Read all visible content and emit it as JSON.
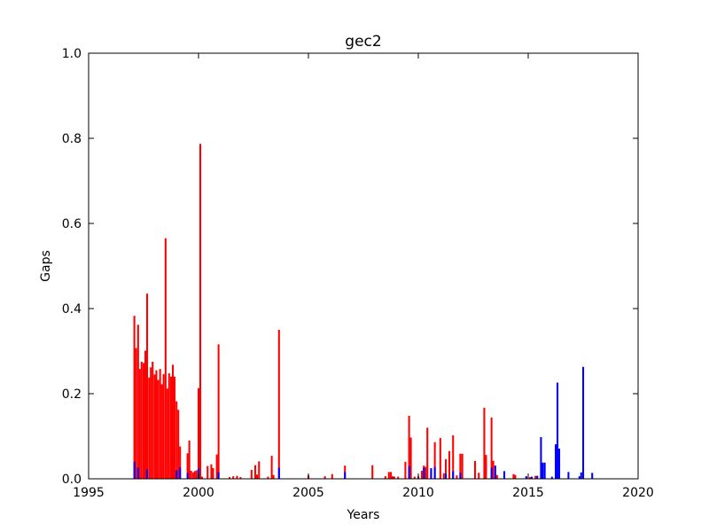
{
  "chart_data": {
    "type": "bar",
    "title": "gec2",
    "xlabel": "Years",
    "ylabel": "Gaps",
    "xlim": [
      1995,
      2020
    ],
    "ylim": [
      0,
      1.0
    ],
    "xticks": [
      "1995",
      "2000",
      "2005",
      "2010",
      "2015",
      "2020"
    ],
    "yticks": [
      "0.0",
      "0.2",
      "0.4",
      "0.6",
      "0.8",
      "1.0"
    ],
    "grid": false,
    "legend": "none",
    "bar_width_years": 0.083,
    "series": [
      {
        "color": "#ff0000",
        "points": [
          [
            1997.04,
            0.383
          ],
          [
            1997.12,
            0.307
          ],
          [
            1997.21,
            0.362
          ],
          [
            1997.29,
            0.258
          ],
          [
            1997.37,
            0.275
          ],
          [
            1997.46,
            0.272
          ],
          [
            1997.54,
            0.301
          ],
          [
            1997.62,
            0.435
          ],
          [
            1997.71,
            0.238
          ],
          [
            1997.79,
            0.262
          ],
          [
            1997.87,
            0.275
          ],
          [
            1997.96,
            0.245
          ],
          [
            1998.04,
            0.255
          ],
          [
            1998.12,
            0.232
          ],
          [
            1998.21,
            0.258
          ],
          [
            1998.29,
            0.222
          ],
          [
            1998.37,
            0.246
          ],
          [
            1998.46,
            0.565
          ],
          [
            1998.54,
            0.212
          ],
          [
            1998.62,
            0.248
          ],
          [
            1998.71,
            0.24
          ],
          [
            1998.79,
            0.268
          ],
          [
            1998.87,
            0.24
          ],
          [
            1998.96,
            0.182
          ],
          [
            1999.04,
            0.162
          ],
          [
            1999.12,
            0.076
          ],
          [
            1999.46,
            0.06
          ],
          [
            1999.54,
            0.09
          ],
          [
            1999.62,
            0.019
          ],
          [
            1999.71,
            0.015
          ],
          [
            1999.79,
            0.018
          ],
          [
            1999.87,
            0.02
          ],
          [
            1999.96,
            0.213
          ],
          [
            2000.04,
            0.787
          ],
          [
            2000.12,
            0.005
          ],
          [
            2000.37,
            0.03
          ],
          [
            2000.54,
            0.034
          ],
          [
            2000.62,
            0.025
          ],
          [
            2000.79,
            0.057
          ],
          [
            2000.87,
            0.316
          ],
          [
            2001.37,
            0.004
          ],
          [
            2001.54,
            0.006
          ],
          [
            2001.71,
            0.007
          ],
          [
            2001.87,
            0.004
          ],
          [
            2002.37,
            0.021
          ],
          [
            2002.54,
            0.032
          ],
          [
            2002.62,
            0.01
          ],
          [
            2002.71,
            0.041
          ],
          [
            2003.12,
            0.005
          ],
          [
            2003.29,
            0.054
          ],
          [
            2003.37,
            0.009
          ],
          [
            2003.62,
            0.35
          ],
          [
            2004.96,
            0.008
          ],
          [
            2005.71,
            0.006
          ],
          [
            2006.04,
            0.011
          ],
          [
            2006.62,
            0.031
          ],
          [
            2007.87,
            0.032
          ],
          [
            2008.46,
            0.006
          ],
          [
            2008.62,
            0.016
          ],
          [
            2008.71,
            0.016
          ],
          [
            2008.79,
            0.006
          ],
          [
            2008.87,
            0.005
          ],
          [
            2009.04,
            0.005
          ],
          [
            2009.37,
            0.04
          ],
          [
            2009.54,
            0.148
          ],
          [
            2009.62,
            0.097
          ],
          [
            2009.79,
            0.005
          ],
          [
            2009.96,
            0.006
          ],
          [
            2010.12,
            0.019
          ],
          [
            2010.21,
            0.031
          ],
          [
            2010.29,
            0.028
          ],
          [
            2010.37,
            0.12
          ],
          [
            2010.54,
            0.019
          ],
          [
            2010.71,
            0.086
          ],
          [
            2010.96,
            0.096
          ],
          [
            2011.12,
            0.013
          ],
          [
            2011.21,
            0.046
          ],
          [
            2011.37,
            0.065
          ],
          [
            2011.54,
            0.102
          ],
          [
            2011.71,
            0.008
          ],
          [
            2011.87,
            0.059
          ],
          [
            2011.96,
            0.059
          ],
          [
            2012.54,
            0.042
          ],
          [
            2012.71,
            0.014
          ],
          [
            2012.96,
            0.167
          ],
          [
            2013.04,
            0.056
          ],
          [
            2013.29,
            0.144
          ],
          [
            2013.37,
            0.042
          ],
          [
            2013.54,
            0.009
          ],
          [
            2014.29,
            0.011
          ],
          [
            2014.37,
            0.009
          ],
          [
            2014.87,
            0.005
          ],
          [
            2015.04,
            0.004
          ],
          [
            2015.29,
            0.007
          ]
        ]
      },
      {
        "color": "#0000ff",
        "points": [
          [
            1997.04,
            0.04
          ],
          [
            1997.21,
            0.026
          ],
          [
            1997.62,
            0.022
          ],
          [
            1998.96,
            0.02
          ],
          [
            1999.12,
            0.027
          ],
          [
            1999.46,
            0.014
          ],
          [
            1999.96,
            0.024
          ],
          [
            2000.87,
            0.016
          ],
          [
            2003.62,
            0.026
          ],
          [
            2006.62,
            0.016
          ],
          [
            2009.54,
            0.03
          ],
          [
            2010.21,
            0.026
          ],
          [
            2010.54,
            0.025
          ],
          [
            2010.71,
            0.028
          ],
          [
            2011.21,
            0.012
          ],
          [
            2011.54,
            0.018
          ],
          [
            2011.87,
            0.014
          ],
          [
            2013.29,
            0.026
          ],
          [
            2013.46,
            0.031
          ],
          [
            2013.87,
            0.018
          ],
          [
            2014.87,
            0.006
          ],
          [
            2015.12,
            0.005
          ],
          [
            2015.37,
            0.007
          ],
          [
            2015.54,
            0.098
          ],
          [
            2015.62,
            0.038
          ],
          [
            2015.71,
            0.038
          ],
          [
            2016.04,
            0.005
          ],
          [
            2016.21,
            0.081
          ],
          [
            2016.29,
            0.226
          ],
          [
            2016.37,
            0.071
          ],
          [
            2016.79,
            0.016
          ],
          [
            2017.29,
            0.006
          ],
          [
            2017.37,
            0.015
          ],
          [
            2017.46,
            0.263
          ],
          [
            2017.87,
            0.014
          ]
        ]
      }
    ]
  }
}
